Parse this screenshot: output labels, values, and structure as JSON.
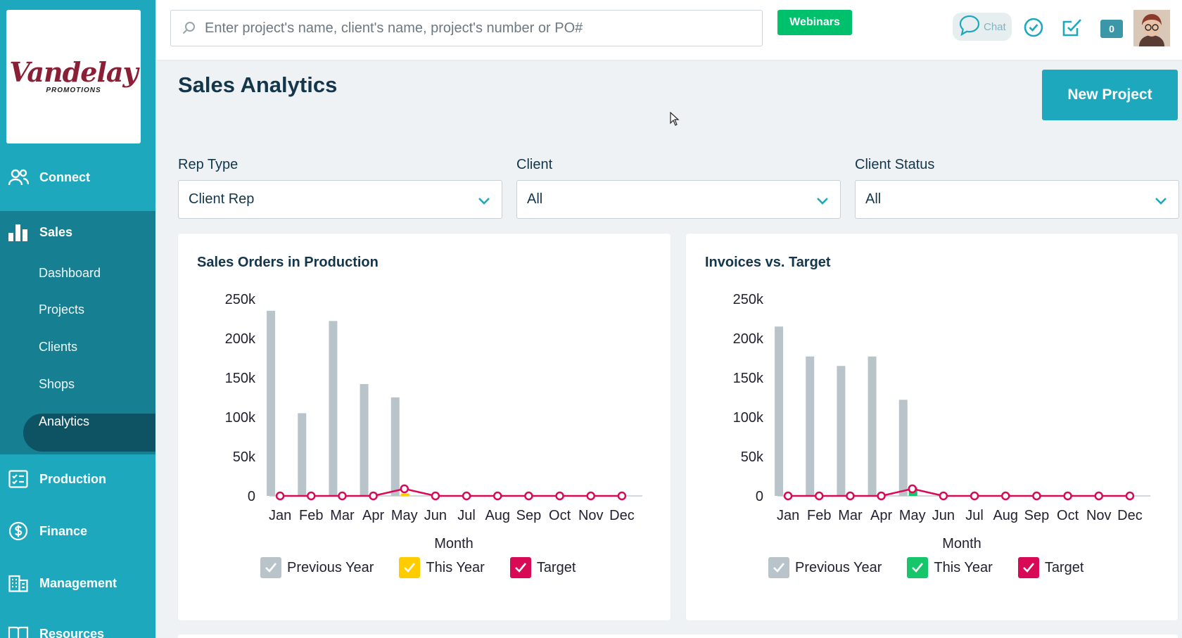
{
  "app": {
    "logo": {
      "script": "Vandelay",
      "sub": "PROMOTIONS"
    }
  },
  "sidebar": {
    "items": [
      {
        "label": "Connect",
        "icon": "users-icon"
      },
      {
        "label": "Sales",
        "icon": "bar-chart-icon"
      },
      {
        "label": "Production",
        "icon": "checklist-icon"
      },
      {
        "label": "Finance",
        "icon": "dollar-circle-icon"
      },
      {
        "label": "Management",
        "icon": "building-icon"
      },
      {
        "label": "Resources",
        "icon": "book-icon"
      }
    ],
    "sales_sub": [
      "Dashboard",
      "Projects",
      "Clients",
      "Shops",
      "Analytics"
    ],
    "active_sub": "Analytics"
  },
  "topbar": {
    "search_placeholder": "Enter project's name, client's name, project's number or PO#",
    "webinars_label": "Webinars",
    "chat_label": "Chat",
    "notification_count": "0"
  },
  "page": {
    "title": "Sales Analytics",
    "new_project_label": "New Project"
  },
  "filters": [
    {
      "label": "Rep Type",
      "value": "Client Rep"
    },
    {
      "label": "Client",
      "value": "All"
    },
    {
      "label": "Client Status",
      "value": "All"
    }
  ],
  "colors": {
    "previous_year": "#b9c4ca",
    "this_year_left": "#ffcc00",
    "this_year_right": "#17c66b",
    "target": "#d90a55"
  },
  "chart_data": [
    {
      "type": "bar",
      "title": "Sales Orders in Production",
      "xlabel": "Month",
      "ylabel": "",
      "ylim": [
        0,
        250000
      ],
      "yticks": [
        "0",
        "50k",
        "100k",
        "150k",
        "200k",
        "250k"
      ],
      "categories": [
        "Jan",
        "Feb",
        "Mar",
        "Apr",
        "May",
        "Jun",
        "Jul",
        "Aug",
        "Sep",
        "Oct",
        "Nov",
        "Dec"
      ],
      "series": [
        {
          "name": "Previous Year",
          "kind": "bar",
          "values": [
            235000,
            105000,
            222000,
            142000,
            125000,
            0,
            0,
            0,
            0,
            0,
            0,
            0
          ]
        },
        {
          "name": "This Year",
          "kind": "bar",
          "values": [
            0,
            0,
            0,
            0,
            3000,
            0,
            0,
            0,
            0,
            0,
            0,
            0
          ]
        },
        {
          "name": "Target",
          "kind": "line",
          "values": [
            0,
            0,
            0,
            0,
            9000,
            0,
            0,
            0,
            0,
            0,
            0,
            0
          ]
        }
      ],
      "legend": [
        "Previous Year",
        "This Year",
        "Target"
      ],
      "legend_position": "bottom",
      "grid": false
    },
    {
      "type": "bar",
      "title": "Invoices vs. Target",
      "xlabel": "Month",
      "ylabel": "",
      "ylim": [
        0,
        250000
      ],
      "yticks": [
        "0",
        "50k",
        "100k",
        "150k",
        "200k",
        "250k"
      ],
      "categories": [
        "Jan",
        "Feb",
        "Mar",
        "Apr",
        "May",
        "Jun",
        "Jul",
        "Aug",
        "Sep",
        "Oct",
        "Nov",
        "Dec"
      ],
      "series": [
        {
          "name": "Previous Year",
          "kind": "bar",
          "values": [
            215000,
            177000,
            165000,
            177000,
            122000,
            0,
            0,
            0,
            0,
            0,
            0,
            0
          ]
        },
        {
          "name": "This Year",
          "kind": "bar",
          "values": [
            0,
            0,
            1500,
            0,
            11000,
            0,
            0,
            0,
            0,
            0,
            0,
            0
          ]
        },
        {
          "name": "Target",
          "kind": "line",
          "values": [
            0,
            0,
            0,
            0,
            9000,
            0,
            0,
            0,
            0,
            0,
            0,
            0
          ]
        }
      ],
      "legend": [
        "Previous Year",
        "This Year",
        "Target"
      ],
      "legend_position": "bottom",
      "grid": false
    }
  ]
}
